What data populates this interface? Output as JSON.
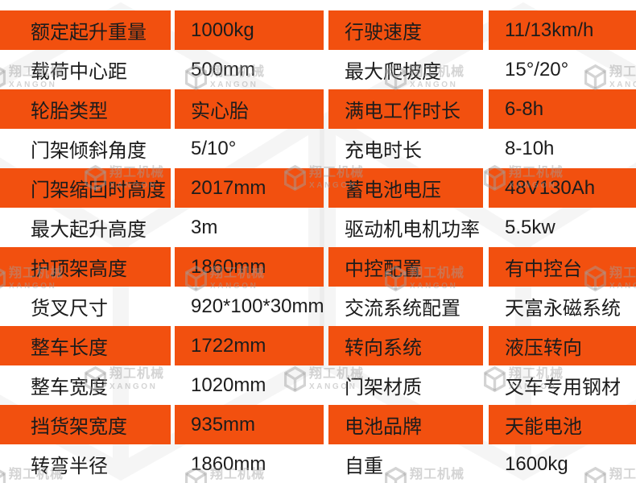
{
  "table": {
    "rows": [
      {
        "cells": [
          "额定起升重量",
          "1000kg",
          "行驶速度",
          "11/13km/h"
        ]
      },
      {
        "cells": [
          "载荷中心距",
          "500mm",
          "最大爬坡度",
          "15°/20°"
        ]
      },
      {
        "cells": [
          "轮胎类型",
          "实心胎",
          "满电工作时长",
          "6-8h"
        ]
      },
      {
        "cells": [
          "门架倾斜角度",
          "5/10°",
          "充电时长",
          "8-10h"
        ]
      },
      {
        "cells": [
          "门架缩回时高度",
          "2017mm",
          "蓄电池电压",
          "48V130Ah"
        ]
      },
      {
        "cells": [
          "最大起升高度",
          "3m",
          "驱动机电机功率",
          "5.5kw"
        ]
      },
      {
        "cells": [
          "护顶架高度",
          "1860mm",
          "中控配置",
          "有中控台"
        ]
      },
      {
        "cells": [
          "货叉尺寸",
          "920*100*30mm",
          "交流系统配置",
          "天富永磁系统"
        ]
      },
      {
        "cells": [
          "整车长度",
          "1722mm",
          "转向系统",
          "液压转向"
        ]
      },
      {
        "cells": [
          "整车宽度",
          "1020mm",
          "门架材质",
          "叉车专用钢材"
        ]
      },
      {
        "cells": [
          "挡货架宽度",
          "935mm",
          "电池品牌",
          "天能电池"
        ]
      },
      {
        "cells": [
          "转弯半径",
          "1860mm",
          "自重",
          "1600kg"
        ]
      }
    ]
  },
  "watermark": {
    "brand_cn": "翔工机械",
    "brand_en": "XANGON"
  },
  "colors": {
    "row_orange": "#f2500f",
    "row_white": "#ffffff",
    "text": "#1c1c1c",
    "watermark": "rgba(160,160,160,0.45)"
  }
}
